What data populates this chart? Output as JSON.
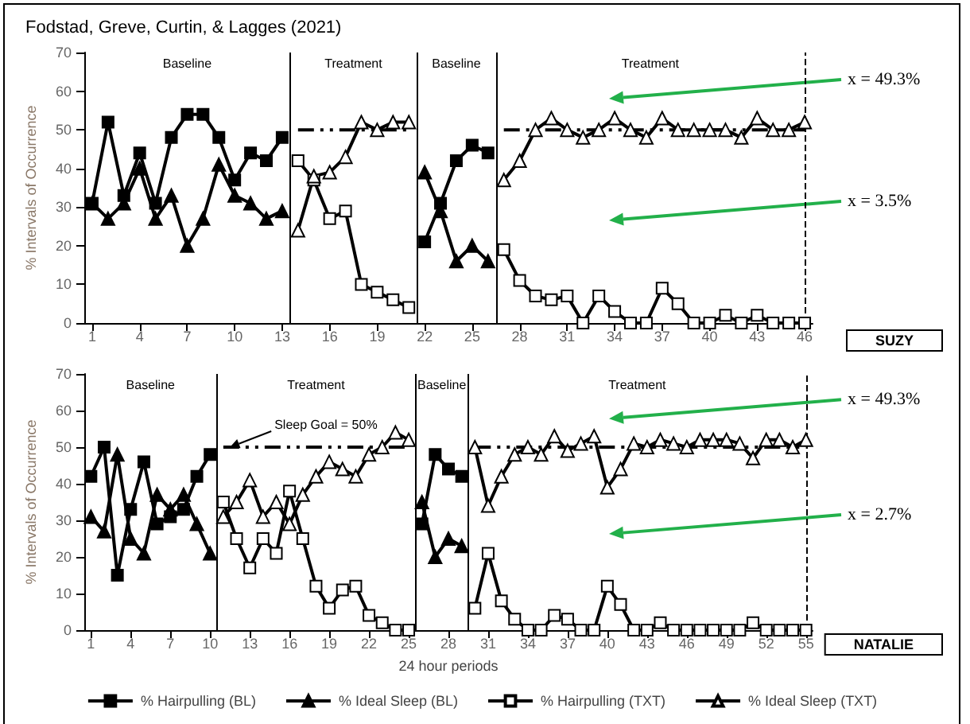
{
  "chart_data": [
    {
      "type": "line",
      "title": "Fodstad, Greve, Curtin, & Lagges (2021)",
      "ylabel": "% Intervals of Occurrence",
      "legend": false,
      "grid": false,
      "x": [
        1,
        2,
        3,
        4,
        5,
        6,
        7,
        8,
        9,
        10,
        11,
        12,
        13,
        14,
        15,
        16,
        17,
        18,
        19,
        20,
        21,
        22,
        23,
        24,
        25,
        26,
        27,
        28,
        29,
        30,
        31,
        32,
        33,
        34,
        35,
        36,
        37,
        38,
        39,
        40,
        41,
        42,
        43,
        44,
        45,
        46
      ],
      "xlim": [
        0.5,
        46.5
      ],
      "xticks": [
        1,
        4,
        7,
        10,
        13,
        16,
        19,
        22,
        25,
        28,
        31,
        34,
        37,
        40,
        43,
        46
      ],
      "ylim": [
        0,
        70
      ],
      "yticks": [
        0,
        10,
        20,
        30,
        40,
        50,
        60,
        70
      ],
      "series": [
        {
          "color": "#000000",
          "marker": "square",
          "values": [
            31,
            52,
            33,
            44,
            31,
            48,
            54,
            54,
            48,
            37,
            44,
            42,
            48,
            null,
            null,
            null,
            null,
            null,
            null,
            null,
            null,
            21,
            31,
            42,
            46,
            44,
            null,
            null,
            null,
            null,
            null,
            null,
            null,
            null,
            null,
            null,
            null,
            null,
            null,
            null,
            null,
            null,
            null,
            null,
            null,
            null
          ]
        },
        {
          "color": "#000000",
          "marker": "triangle",
          "values": [
            31,
            27,
            31,
            40,
            27,
            33,
            20,
            27,
            41,
            33,
            31,
            27,
            29,
            null,
            null,
            null,
            null,
            null,
            null,
            null,
            null,
            39,
            29,
            16,
            20,
            16,
            null,
            null,
            null,
            null,
            null,
            null,
            null,
            null,
            null,
            null,
            null,
            null,
            null,
            null,
            null,
            null,
            null,
            null,
            null,
            null
          ]
        },
        {
          "color": "#ffffff",
          "marker": "square",
          "values": [
            null,
            null,
            null,
            null,
            null,
            null,
            null,
            null,
            null,
            null,
            null,
            null,
            null,
            42,
            37,
            27,
            29,
            10,
            8,
            6,
            4,
            null,
            null,
            null,
            null,
            null,
            19,
            11,
            7,
            6,
            7,
            0,
            7,
            3,
            0,
            0,
            9,
            5,
            0,
            0,
            2,
            0,
            2,
            0,
            0,
            0
          ]
        },
        {
          "color": "#ffffff",
          "marker": "triangle",
          "values": [
            null,
            null,
            null,
            null,
            null,
            null,
            null,
            null,
            null,
            null,
            null,
            null,
            null,
            24,
            38,
            39,
            43,
            52,
            50,
            52,
            52,
            null,
            null,
            null,
            null,
            null,
            37,
            42,
            50,
            53,
            50,
            48,
            50,
            53,
            50,
            48,
            53,
            50,
            50,
            50,
            50,
            48,
            53,
            50,
            50,
            52
          ]
        },
        {
          "color": "#000000",
          "marker": "none",
          "line_style": "dashed",
          "values": [
            null,
            null,
            null,
            null,
            null,
            null,
            null,
            null,
            null,
            null,
            null,
            null,
            null,
            50,
            50,
            50,
            50,
            50,
            50,
            50,
            50,
            null,
            null,
            null,
            null,
            null,
            50,
            50,
            50,
            50,
            50,
            50,
            50,
            50,
            50,
            50,
            50,
            50,
            50,
            50,
            50,
            50,
            50,
            50,
            50,
            50
          ]
        }
      ],
      "ref_lines": [
        {
          "axis": "x",
          "value": 13.5,
          "line_style": "solid"
        },
        {
          "axis": "x",
          "value": 21.5,
          "line_style": "solid"
        },
        {
          "axis": "x",
          "value": 26.5,
          "line_style": "solid"
        },
        {
          "axis": "x",
          "value": 46,
          "line_style": "dashed"
        }
      ],
      "annotations": [
        "Baseline",
        "Treatment",
        "Baseline",
        "Treatment",
        "SUZY",
        "x = 49.3%",
        "x = 3.5%"
      ]
    },
    {
      "type": "line",
      "xlabel": "24 hour periods",
      "ylabel": "% Intervals of Occurrence",
      "legend": "bottom",
      "grid": false,
      "x": [
        1,
        2,
        3,
        4,
        5,
        6,
        7,
        8,
        9,
        10,
        11,
        12,
        13,
        14,
        15,
        16,
        17,
        18,
        19,
        20,
        21,
        22,
        23,
        24,
        25,
        26,
        27,
        28,
        29,
        30,
        31,
        32,
        33,
        34,
        35,
        36,
        37,
        38,
        39,
        40,
        41,
        42,
        43,
        44,
        45,
        46,
        47,
        48,
        49,
        50,
        51,
        52,
        53,
        54,
        55
      ],
      "xlim": [
        0.5,
        55.5
      ],
      "xticks": [
        1,
        4,
        7,
        10,
        13,
        16,
        19,
        22,
        25,
        28,
        31,
        34,
        37,
        40,
        43,
        46,
        49,
        52,
        55
      ],
      "ylim": [
        0,
        70
      ],
      "yticks": [
        0,
        10,
        20,
        30,
        40,
        50,
        60,
        70
      ],
      "series": [
        {
          "name": "% Hairpulling (BL)",
          "color": "#000000",
          "marker": "square",
          "values": [
            42,
            50,
            15,
            33,
            46,
            29,
            31,
            33,
            42,
            48,
            null,
            null,
            null,
            null,
            null,
            null,
            null,
            null,
            null,
            null,
            null,
            null,
            null,
            null,
            null,
            29,
            48,
            44,
            42,
            null,
            null,
            null,
            null,
            null,
            null,
            null,
            null,
            null,
            null,
            null,
            null,
            null,
            null,
            null,
            null,
            null,
            null,
            null,
            null,
            null,
            null,
            null,
            null,
            null,
            null
          ]
        },
        {
          "name": "% Ideal Sleep (BL)",
          "color": "#000000",
          "marker": "triangle",
          "values": [
            31,
            27,
            48,
            25,
            21,
            37,
            33,
            37,
            29,
            21,
            null,
            null,
            null,
            null,
            null,
            null,
            null,
            null,
            null,
            null,
            null,
            null,
            null,
            null,
            null,
            35,
            20,
            25,
            23,
            null,
            null,
            null,
            null,
            null,
            null,
            null,
            null,
            null,
            null,
            null,
            null,
            null,
            null,
            null,
            null,
            null,
            null,
            null,
            null,
            null,
            null,
            null,
            null,
            null,
            null
          ]
        },
        {
          "name": "% Hairpulling (TXT)",
          "color": "#ffffff",
          "marker": "square",
          "values": [
            null,
            null,
            null,
            null,
            null,
            null,
            null,
            null,
            null,
            null,
            35,
            25,
            17,
            25,
            21,
            38,
            25,
            12,
            6,
            11,
            12,
            4,
            2,
            0,
            0,
            null,
            null,
            null,
            null,
            6,
            21,
            8,
            3,
            0,
            0,
            4,
            3,
            0,
            0,
            12,
            7,
            0,
            0,
            2,
            0,
            0,
            0,
            0,
            0,
            0,
            2,
            0,
            0,
            0,
            0
          ]
        },
        {
          "name": "% Ideal Sleep (TXT)",
          "color": "#ffffff",
          "marker": "triangle",
          "values": [
            null,
            null,
            null,
            null,
            null,
            null,
            null,
            null,
            null,
            null,
            31,
            35,
            41,
            31,
            35,
            29,
            37,
            42,
            46,
            44,
            42,
            48,
            50,
            54,
            52,
            null,
            null,
            null,
            null,
            50,
            34,
            42,
            48,
            50,
            48,
            53,
            49,
            51,
            53,
            39,
            44,
            51,
            50,
            52,
            51,
            50,
            52,
            52,
            52,
            51,
            47,
            52,
            52,
            50,
            52
          ]
        },
        {
          "color": "#000000",
          "marker": "none",
          "line_style": "dashed",
          "values": [
            null,
            null,
            null,
            null,
            null,
            null,
            null,
            null,
            null,
            null,
            50,
            50,
            50,
            50,
            50,
            50,
            50,
            50,
            50,
            50,
            50,
            50,
            50,
            50,
            50,
            null,
            null,
            null,
            null,
            50,
            50,
            50,
            50,
            50,
            50,
            50,
            50,
            50,
            50,
            50,
            50,
            50,
            50,
            50,
            50,
            50,
            50,
            50,
            50,
            50,
            50,
            50,
            50,
            50,
            50
          ]
        }
      ],
      "ref_lines": [
        {
          "axis": "x",
          "value": 10.5,
          "line_style": "solid"
        },
        {
          "axis": "x",
          "value": 25.5,
          "line_style": "solid"
        },
        {
          "axis": "x",
          "value": 29.5,
          "line_style": "solid"
        },
        {
          "axis": "x",
          "value": 55,
          "line_style": "dashed"
        }
      ],
      "annotations": [
        "Baseline",
        "Treatment",
        "Baseline",
        "Treatment",
        "NATALIE",
        "x = 49.3%",
        "x = 2.7%",
        {
          "text": "Sleep Goal = 50%",
          "x": 11.5,
          "y": 50
        }
      ]
    }
  ]
}
